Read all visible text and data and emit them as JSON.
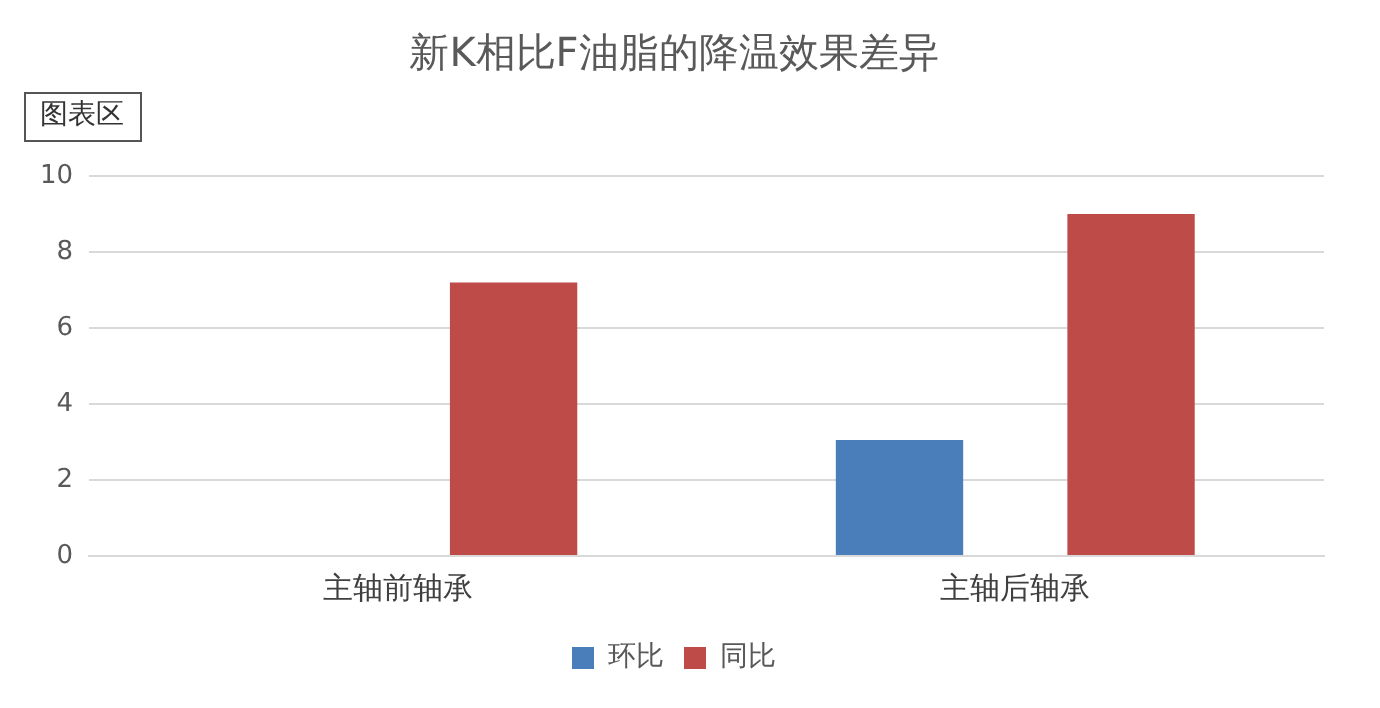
{
  "chart_data": {
    "type": "bar",
    "title": "新K相比F油脂的降温效果差异",
    "categories": [
      "主轴前轴承",
      "主轴后轴承"
    ],
    "series": [
      {
        "name": "环比",
        "color": "#4a7ebb",
        "values": [
          0,
          3.05
        ]
      },
      {
        "name": "同比",
        "color": "#be4b48",
        "values": [
          7.2,
          9.0
        ]
      }
    ],
    "ylim": [
      0,
      10
    ],
    "yticks": [
      0,
      2,
      4,
      6,
      8,
      10
    ],
    "grid": "y",
    "legend": "bottom",
    "annotations": [
      "图表区"
    ]
  }
}
